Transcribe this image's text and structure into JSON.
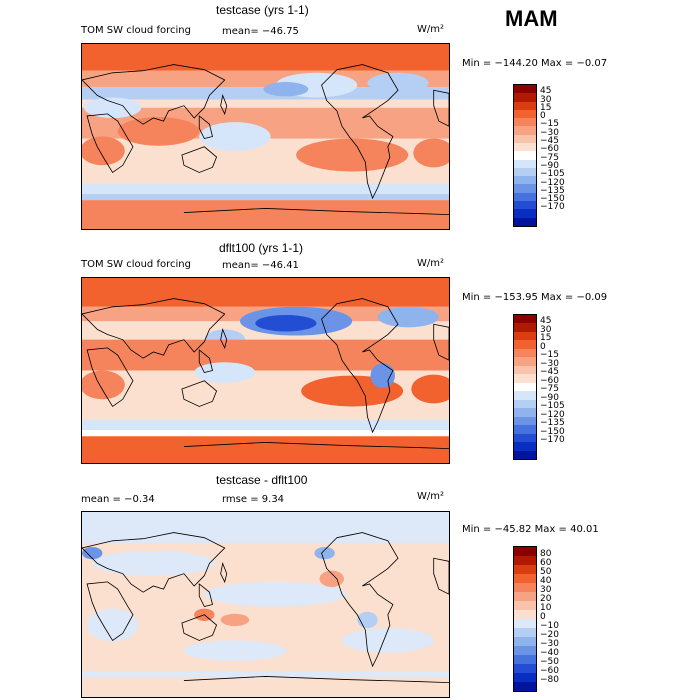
{
  "season": "MAM",
  "panels": [
    {
      "title": "testcase (yrs 1-1)",
      "left_label": "TOM SW cloud forcing",
      "mean_label": "mean= −46.75",
      "units": "W/m²",
      "minmax": "Min = −144.20 Max =  −0.07",
      "ticks": [
        "45",
        "30",
        "15",
        "0",
        "−15",
        "−30",
        "−45",
        "−60",
        "−75",
        "−90",
        "−105",
        "−120",
        "−135",
        "−150",
        "−170"
      ],
      "colors": [
        "#8b0000",
        "#b01a00",
        "#d93d10",
        "#f2622f",
        "#f5835b",
        "#f7a383",
        "#f9c2aa",
        "#fbe0d0",
        "#ffffff",
        "#d6e6fa",
        "#b4cff3",
        "#8fb3ed",
        "#6b94e6",
        "#4672de",
        "#234ed3",
        "#0a2ec2",
        "#00149e"
      ]
    },
    {
      "title": "dflt100 (yrs 1-1)",
      "left_label": "TOM SW cloud forcing",
      "mean_label": "mean= −46.41",
      "units": "W/m²",
      "minmax": "Min = −153.95 Max =  −0.09",
      "ticks": [
        "45",
        "30",
        "15",
        "0",
        "−15",
        "−30",
        "−45",
        "−60",
        "−75",
        "−90",
        "−105",
        "−120",
        "−135",
        "−150",
        "−170"
      ],
      "colors": [
        "#8b0000",
        "#b01a00",
        "#d93d10",
        "#f2622f",
        "#f5835b",
        "#f7a383",
        "#f9c2aa",
        "#fbe0d0",
        "#ffffff",
        "#d6e6fa",
        "#b4cff3",
        "#8fb3ed",
        "#6b94e6",
        "#4672de",
        "#234ed3",
        "#0a2ec2",
        "#00149e"
      ]
    },
    {
      "title": "testcase - dflt100",
      "left_label": "mean =  −0.34",
      "mid_label": "rmse =   9.34",
      "units": "W/m²",
      "minmax": "Min = −45.82 Max =  40.01",
      "ticks": [
        "80",
        "60",
        "50",
        "40",
        "30",
        "20",
        "10",
        "0",
        "−10",
        "−20",
        "−30",
        "−40",
        "−50",
        "−60",
        "−80"
      ],
      "colors": [
        "#8b0000",
        "#b01a00",
        "#d93d10",
        "#f2622f",
        "#f5835b",
        "#f7a383",
        "#f9c2aa",
        "#fbe0d0",
        "#dde8f8",
        "#b4cff3",
        "#8fb3ed",
        "#6b94e6",
        "#4672de",
        "#234ed3",
        "#0a2ec2",
        "#00149e"
      ]
    }
  ]
}
